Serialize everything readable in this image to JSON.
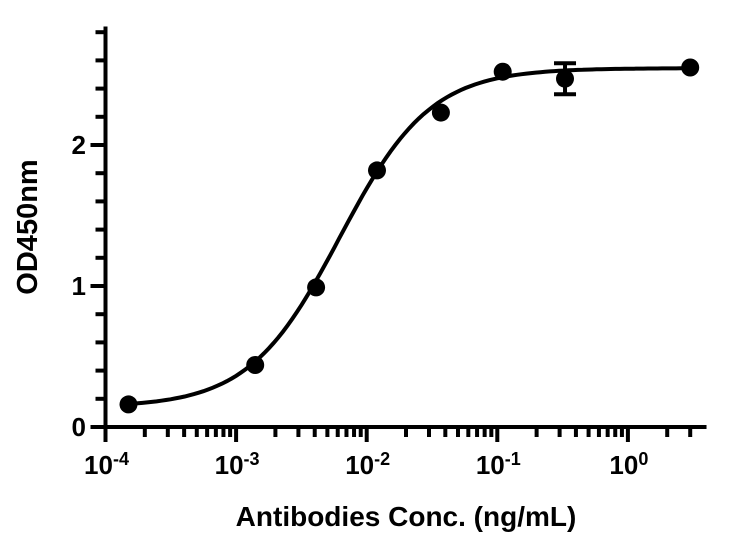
{
  "figure": {
    "background": "#ffffff",
    "foreground": "#000000"
  },
  "chart_data": {
    "type": "scatter",
    "subtype": "sigmoidal-dose-response-fit",
    "title": "",
    "xlabel": "Antibodies Conc. (ng/mL)",
    "ylabel": "OD450nm",
    "x_scale": "log10",
    "grid": "off",
    "legend": "none",
    "x_axis": {
      "lim_log10": [
        -4,
        0.602
      ],
      "major_ticks_log10": [
        -4,
        -3,
        -2,
        -1,
        0
      ],
      "major_tick_labels": [
        {
          "mantissa": "10",
          "exponent": "-4"
        },
        {
          "mantissa": "10",
          "exponent": "-3"
        },
        {
          "mantissa": "10",
          "exponent": "-2"
        },
        {
          "mantissa": "10",
          "exponent": "-1"
        },
        {
          "mantissa": "10",
          "exponent": "0"
        }
      ],
      "minor_tick_multiples": [
        2,
        3,
        4,
        5,
        6,
        7,
        8,
        9
      ]
    },
    "y_axis": {
      "lim": [
        0,
        2.84
      ],
      "major_ticks": [
        0,
        1,
        2
      ],
      "major_tick_labels": [
        "0",
        "1",
        "2"
      ],
      "minor_tick_step": 0.2
    },
    "series": [
      {
        "name": "antibody-binding-points",
        "marker": "filled-circle",
        "color": "#000000",
        "x": [
          0.00015,
          0.0014,
          0.0041,
          0.012,
          0.037,
          0.11,
          0.33,
          3
        ],
        "y": [
          0.16,
          0.44,
          0.99,
          1.82,
          2.23,
          2.52,
          2.47,
          2.55
        ],
        "error_bars": [
          {
            "point_index": 6,
            "sd": 0.11
          }
        ]
      }
    ],
    "fit_curve": {
      "model": "four-parameter-logistic",
      "bottom": 0.14,
      "top": 2.545,
      "ec50": 0.0062,
      "hill": 1.25,
      "color": "#000000"
    }
  }
}
